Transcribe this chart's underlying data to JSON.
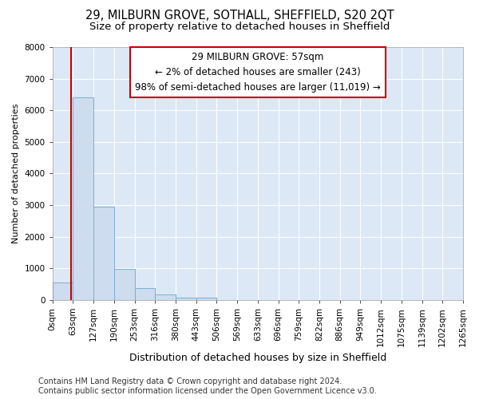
{
  "title": "29, MILBURN GROVE, SOTHALL, SHEFFIELD, S20 2QT",
  "subtitle": "Size of property relative to detached houses in Sheffield",
  "xlabel": "Distribution of detached houses by size in Sheffield",
  "ylabel": "Number of detached properties",
  "bar_values": [
    550,
    6400,
    2950,
    980,
    380,
    175,
    80,
    65,
    0,
    0,
    0,
    0,
    0,
    0,
    0,
    0,
    0,
    0,
    0,
    0
  ],
  "bar_labels": [
    "0sqm",
    "63sqm",
    "127sqm",
    "190sqm",
    "253sqm",
    "316sqm",
    "380sqm",
    "443sqm",
    "506sqm",
    "569sqm",
    "633sqm",
    "696sqm",
    "759sqm",
    "822sqm",
    "886sqm",
    "949sqm",
    "1012sqm",
    "1075sqm",
    "1139sqm",
    "1202sqm",
    "1265sqm"
  ],
  "bar_color": "#cddcee",
  "bar_edge_color": "#7bafd4",
  "ylim": [
    0,
    8000
  ],
  "yticks": [
    0,
    1000,
    2000,
    3000,
    4000,
    5000,
    6000,
    7000,
    8000
  ],
  "property_line_x": 0.91,
  "property_line_color": "#cc0000",
  "annotation_text": "29 MILBURN GROVE: 57sqm\n← 2% of detached houses are smaller (243)\n98% of semi-detached houses are larger (11,019) →",
  "annotation_box_edge_color": "#cc0000",
  "fig_background_color": "#ffffff",
  "axes_background_color": "#dce8f5",
  "grid_color": "#ffffff",
  "footer_text": "Contains HM Land Registry data © Crown copyright and database right 2024.\nContains public sector information licensed under the Open Government Licence v3.0.",
  "title_fontsize": 10.5,
  "subtitle_fontsize": 9.5,
  "xlabel_fontsize": 9,
  "ylabel_fontsize": 8,
  "tick_fontsize": 7.5,
  "footer_fontsize": 7,
  "annotation_fontsize": 8.5
}
